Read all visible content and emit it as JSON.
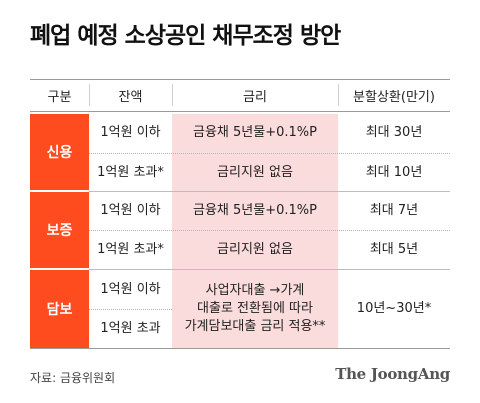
{
  "title": "폐업 예정 소상공인 채무조정 방안",
  "source": "자료: 금융위원회",
  "brand": "The JoongAng",
  "colors": {
    "accent": "#ff4c1f",
    "highlight": "#fbdcdc"
  },
  "chart_data": {
    "type": "table",
    "headers": [
      "구분",
      "잔액",
      "금리",
      "분할상환(만기)"
    ],
    "groups": [
      {
        "name": "신용",
        "rows": [
          {
            "balance": "1억원 이하",
            "rate": "금융채 5년물+0.1%P",
            "term": "최대 30년"
          },
          {
            "balance": "1억원 초과*",
            "rate": "금리지원 없음",
            "term": "최대 10년"
          }
        ]
      },
      {
        "name": "보증",
        "rows": [
          {
            "balance": "1억원 이하",
            "rate": "금융채 5년물+0.1%P",
            "term": "최대 7년"
          },
          {
            "balance": "1억원 초과*",
            "rate": "금리지원 없음",
            "term": "최대 5년"
          }
        ]
      },
      {
        "name": "담보",
        "rows": [
          {
            "balance": "1억원 이하"
          },
          {
            "balance": "1억원 초과"
          }
        ],
        "rate_lines": [
          "사업자대출 →가계",
          "대출로 전환됨에 따라",
          "가계담보대출 금리 적용**"
        ],
        "term": "10년~30년*"
      }
    ]
  }
}
